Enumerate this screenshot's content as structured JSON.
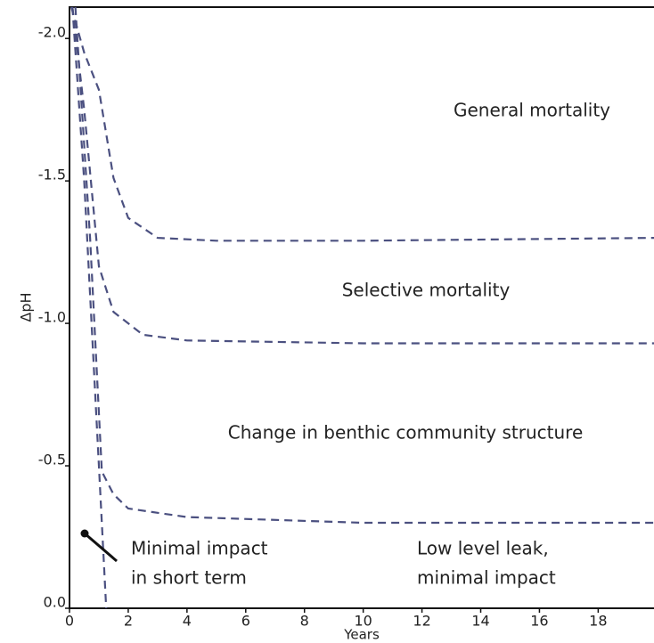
{
  "chart_data": {
    "type": "line",
    "x_label": "Years",
    "y_label": "ΔpH",
    "xlim": [
      0,
      19.9
    ],
    "ylim": [
      0,
      -2.11
    ],
    "xticks": [
      0,
      2,
      4,
      6,
      8,
      10,
      12,
      14,
      16,
      18
    ],
    "yticks": [
      {
        "value": 0,
        "label": "0.0"
      },
      {
        "value": -0.5,
        "label": "-0.5"
      },
      {
        "value": -1,
        "label": "-1.0"
      },
      {
        "value": -1.5,
        "label": "-1.5"
      },
      {
        "value": -2,
        "label": "-2.0"
      }
    ],
    "line_style": "dashed",
    "series": [
      {
        "color": "#4b5080",
        "x": [
          0.06,
          0.5,
          1,
          1.5,
          2,
          3,
          5,
          10,
          19.9
        ],
        "values": [
          -2.11,
          -1.95,
          -1.82,
          -1.51,
          -1.37,
          -1.3,
          -1.29,
          -1.29,
          -1.3
        ]
      },
      {
        "color": "#4b5080",
        "x": [
          0.1,
          0.5,
          1,
          1.5,
          2.5,
          4,
          10,
          19.9
        ],
        "values": [
          -2.11,
          -1.75,
          -1.2,
          -1.04,
          -0.96,
          -0.94,
          -0.93,
          -0.93
        ]
      },
      {
        "color": "#4b5080",
        "x": [
          0.2,
          0.7,
          1.1,
          1.5,
          2,
          4,
          10,
          19.9
        ],
        "values": [
          -2.11,
          -1.3,
          -0.48,
          -0.4,
          -0.35,
          -0.32,
          -0.3,
          -0.3
        ]
      },
      {
        "color": "#4b5080",
        "x": [
          0.1,
          0.5,
          1,
          1.25
        ],
        "values": [
          -2.11,
          -1.5,
          -0.5,
          0
        ]
      }
    ],
    "annotations": [
      {
        "lines": [
          "General mortality"
        ]
      },
      {
        "lines": [
          "Selective mortality"
        ]
      },
      {
        "lines": [
          "Change in benthic community structure"
        ]
      },
      {
        "lines": [
          "Low level leak,",
          "minimal impact"
        ]
      },
      {
        "lines": [
          "Minimal impact",
          "in short term"
        ]
      }
    ]
  }
}
